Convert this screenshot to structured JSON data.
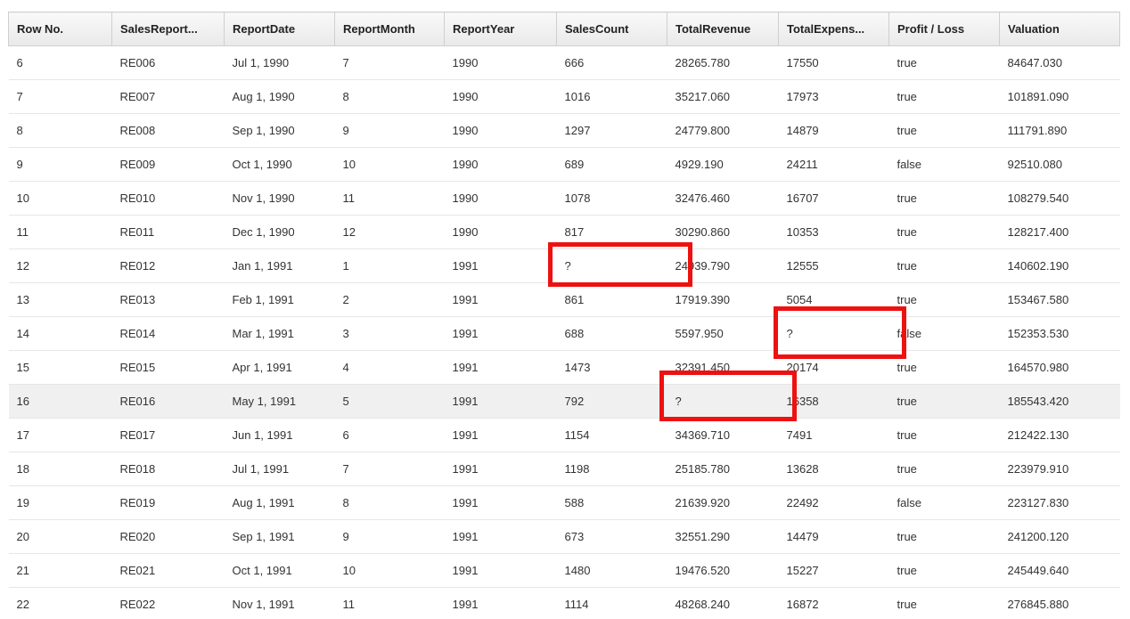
{
  "grid": {
    "columns": [
      "Row No.",
      "SalesReport...",
      "ReportDate",
      "ReportMonth",
      "ReportYear",
      "SalesCount",
      "TotalRevenue",
      "TotalExpens...",
      "Profit / Loss",
      "Valuation"
    ],
    "rows": [
      [
        "6",
        "RE006",
        "Jul 1, 1990",
        "7",
        "1990",
        "666",
        "28265.780",
        "17550",
        "true",
        "84647.030"
      ],
      [
        "7",
        "RE007",
        "Aug 1, 1990",
        "8",
        "1990",
        "1016",
        "35217.060",
        "17973",
        "true",
        "101891.090"
      ],
      [
        "8",
        "RE008",
        "Sep 1, 1990",
        "9",
        "1990",
        "1297",
        "24779.800",
        "14879",
        "true",
        "111791.890"
      ],
      [
        "9",
        "RE009",
        "Oct 1, 1990",
        "10",
        "1990",
        "689",
        "4929.190",
        "24211",
        "false",
        "92510.080"
      ],
      [
        "10",
        "RE010",
        "Nov 1, 1990",
        "11",
        "1990",
        "1078",
        "32476.460",
        "16707",
        "true",
        "108279.540"
      ],
      [
        "11",
        "RE011",
        "Dec 1, 1990",
        "12",
        "1990",
        "817",
        "30290.860",
        "10353",
        "true",
        "128217.400"
      ],
      [
        "12",
        "RE012",
        "Jan 1, 1991",
        "1",
        "1991",
        "?",
        "24939.790",
        "12555",
        "true",
        "140602.190"
      ],
      [
        "13",
        "RE013",
        "Feb 1, 1991",
        "2",
        "1991",
        "861",
        "17919.390",
        "5054",
        "true",
        "153467.580"
      ],
      [
        "14",
        "RE014",
        "Mar 1, 1991",
        "3",
        "1991",
        "688",
        "5597.950",
        "?",
        "false",
        "152353.530"
      ],
      [
        "15",
        "RE015",
        "Apr 1, 1991",
        "4",
        "1991",
        "1473",
        "32391.450",
        "20174",
        "true",
        "164570.980"
      ],
      [
        "16",
        "RE016",
        "May 1, 1991",
        "5",
        "1991",
        "792",
        "?",
        "16358",
        "true",
        "185543.420"
      ],
      [
        "17",
        "RE017",
        "Jun 1, 1991",
        "6",
        "1991",
        "1154",
        "34369.710",
        "7491",
        "true",
        "212422.130"
      ],
      [
        "18",
        "RE018",
        "Jul 1, 1991",
        "7",
        "1991",
        "1198",
        "25185.780",
        "13628",
        "true",
        "223979.910"
      ],
      [
        "19",
        "RE019",
        "Aug 1, 1991",
        "8",
        "1991",
        "588",
        "21639.920",
        "22492",
        "false",
        "223127.830"
      ],
      [
        "20",
        "RE020",
        "Sep 1, 1991",
        "9",
        "1991",
        "673",
        "32551.290",
        "14479",
        "true",
        "241200.120"
      ],
      [
        "21",
        "RE021",
        "Oct 1, 1991",
        "10",
        "1991",
        "1480",
        "19476.520",
        "15227",
        "true",
        "245449.640"
      ],
      [
        "22",
        "RE022",
        "Nov 1, 1991",
        "11",
        "1991",
        "1114",
        "48268.240",
        "16872",
        "true",
        "276845.880"
      ]
    ],
    "hovered_row": 10
  },
  "colors": {
    "highlight_box": "#ee1111",
    "hover_row": "#f0f0f0",
    "header_bg": "#efefef"
  }
}
